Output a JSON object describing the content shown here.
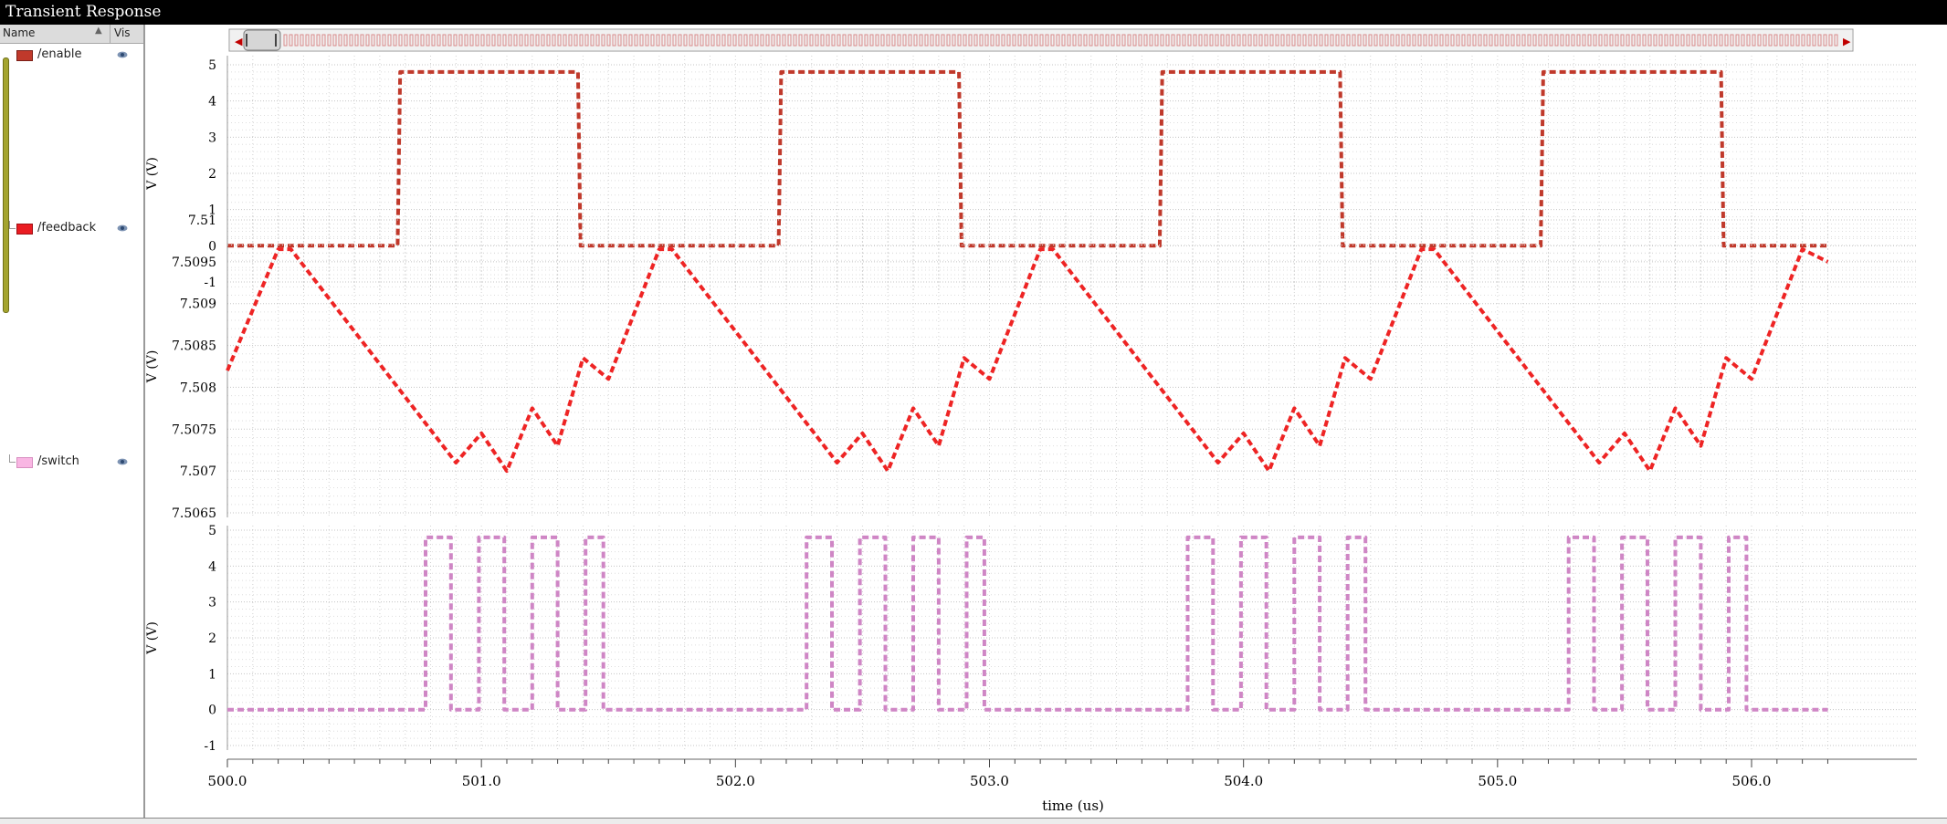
{
  "window": {
    "title": "Transient Response"
  },
  "sidebar": {
    "header": {
      "name_col": "Name",
      "vis_col": "Vis"
    },
    "signals": [
      {
        "label": "/enable",
        "color": "#c0392b"
      },
      {
        "label": "/feedback",
        "color": "#ea1c22"
      },
      {
        "label": "/switch",
        "color": "#f9b6e3"
      }
    ],
    "vis_icon": "eye-icon"
  },
  "colors": {
    "enable": "#c0392b",
    "feedback": "#ee2424",
    "switch": "#cf86c5"
  },
  "chart_data": {
    "type": "line",
    "xlabel": "time (us)",
    "xlim": [
      500.0,
      506.3
    ],
    "x_ticks": [
      500.0,
      501.0,
      502.0,
      503.0,
      504.0,
      505.0,
      506.0
    ],
    "x_tick_labels": [
      "500.0",
      "501.0",
      "502.0",
      "503.0",
      "504.0",
      "505.0",
      "506.0"
    ],
    "panels": [
      {
        "signal": "/enable",
        "ylabel": "V (V)",
        "ylim": [
          -1,
          5
        ],
        "y_ticks": [
          -1,
          0,
          1,
          2,
          3,
          4,
          5
        ],
        "y_tick_labels": [
          "-1",
          "0",
          "1",
          "2",
          "3",
          "4",
          "5"
        ],
        "x": [
          500.0,
          500.67,
          500.68,
          501.38,
          501.39,
          502.17,
          502.18,
          502.88,
          502.89,
          503.67,
          503.68,
          504.38,
          504.39,
          505.17,
          505.18,
          505.88,
          505.89,
          506.3
        ],
        "y": [
          0,
          0,
          4.8,
          4.8,
          0,
          0,
          4.8,
          4.8,
          0,
          0,
          4.8,
          4.8,
          0,
          0,
          4.8,
          4.8,
          0,
          0
        ]
      },
      {
        "signal": "/feedback",
        "ylabel": "V (V)",
        "ylim": [
          7.5065,
          7.51
        ],
        "y_ticks": [
          7.5065,
          7.507,
          7.5075,
          7.508,
          7.5085,
          7.509,
          7.5095,
          7.51
        ],
        "y_tick_labels": [
          "7.5065",
          "7.507",
          "7.5075",
          "7.508",
          "7.5085",
          "7.509",
          "7.5095",
          "7.51"
        ],
        "x": [
          500.0,
          500.2,
          500.25,
          500.9,
          501.0,
          501.1,
          501.2,
          501.3,
          501.4,
          501.5,
          501.7,
          501.75,
          502.4,
          502.5,
          502.6,
          502.7,
          502.8,
          502.9,
          503.0,
          503.2,
          503.25,
          503.9,
          504.0,
          504.1,
          504.2,
          504.3,
          504.4,
          504.5,
          504.7,
          504.75,
          505.4,
          505.5,
          505.6,
          505.7,
          505.8,
          505.9,
          506.0,
          506.2,
          506.3
        ],
        "y": [
          7.5082,
          7.50965,
          7.50965,
          7.5071,
          7.50745,
          7.507,
          7.50775,
          7.5073,
          7.50835,
          7.5081,
          7.50965,
          7.50965,
          7.5071,
          7.50745,
          7.507,
          7.50775,
          7.5073,
          7.50835,
          7.5081,
          7.50965,
          7.50965,
          7.5071,
          7.50745,
          7.507,
          7.50775,
          7.5073,
          7.50835,
          7.5081,
          7.50965,
          7.50965,
          7.5071,
          7.50745,
          7.507,
          7.50775,
          7.5073,
          7.50835,
          7.5081,
          7.50965,
          7.5095
        ]
      },
      {
        "signal": "/switch",
        "ylabel": "V (V)",
        "ylim": [
          -1,
          5
        ],
        "y_ticks": [
          -1,
          0,
          1,
          2,
          3,
          4,
          5
        ],
        "y_tick_labels": [
          "-1",
          "0",
          "1",
          "2",
          "3",
          "4",
          "5"
        ],
        "pulses": [
          [
            500.78,
            500.88
          ],
          [
            500.99,
            501.09
          ],
          [
            501.2,
            501.3
          ],
          [
            501.41,
            501.48
          ],
          [
            502.28,
            502.38
          ],
          [
            502.49,
            502.59
          ],
          [
            502.7,
            502.8
          ],
          [
            502.91,
            502.98
          ],
          [
            503.78,
            503.88
          ],
          [
            503.99,
            504.09
          ],
          [
            504.2,
            504.3
          ],
          [
            504.41,
            504.48
          ],
          [
            505.28,
            505.38
          ],
          [
            505.49,
            505.59
          ],
          [
            505.7,
            505.8
          ],
          [
            505.91,
            505.98
          ]
        ],
        "high": 4.8,
        "low": 0
      }
    ]
  }
}
